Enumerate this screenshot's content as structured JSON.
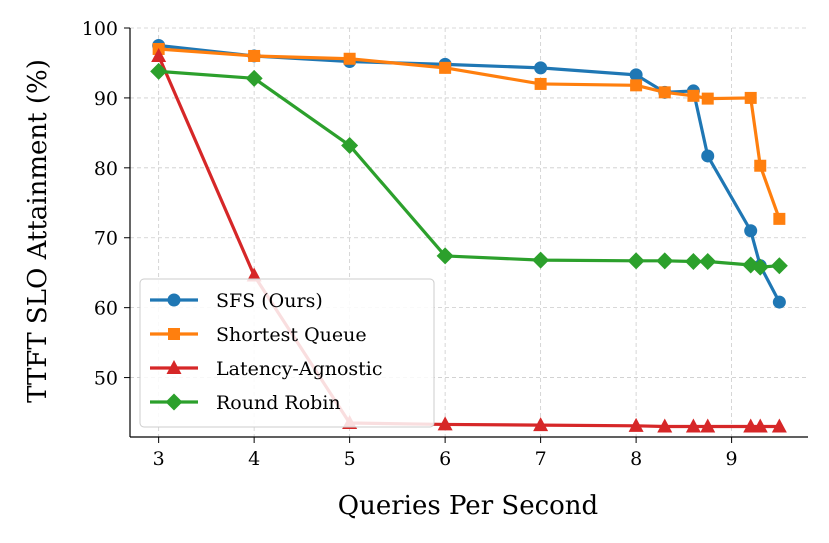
{
  "chart_data": {
    "type": "line",
    "title": "",
    "xlabel": "Queries Per Second",
    "ylabel": "TTFT SLO Attainment (%)",
    "xlim": [
      2.7,
      9.8
    ],
    "ylim": [
      41.5,
      100
    ],
    "xticks": [
      3,
      4,
      5,
      6,
      7,
      8,
      9
    ],
    "yticks": [
      50,
      60,
      70,
      80,
      90,
      100
    ],
    "grid": true,
    "legend_position": "lower-left",
    "series": [
      {
        "name": "SFS (Ours)",
        "color": "#1f77b4",
        "marker": "circle",
        "x": [
          3,
          4,
          5,
          6,
          7,
          8,
          8.3,
          8.6,
          8.75,
          9.2,
          9.3,
          9.5
        ],
        "y": [
          97.5,
          96.0,
          95.2,
          94.8,
          94.3,
          93.3,
          90.8,
          91.0,
          81.7,
          71.0,
          66.0,
          60.8
        ]
      },
      {
        "name": "Shortest Queue",
        "color": "#ff7f0e",
        "marker": "square",
        "x": [
          3,
          4,
          5,
          6,
          7,
          8,
          8.3,
          8.6,
          8.75,
          9.2,
          9.3,
          9.5
        ],
        "y": [
          97.0,
          96.0,
          95.6,
          94.3,
          92.0,
          91.8,
          90.8,
          90.3,
          89.9,
          90.0,
          80.3,
          72.7
        ]
      },
      {
        "name": "Latency-Agnostic",
        "color": "#d62728",
        "marker": "triangle",
        "x": [
          3,
          4,
          5,
          6,
          7,
          8,
          8.3,
          8.6,
          8.75,
          9.2,
          9.3,
          9.5
        ],
        "y": [
          96.0,
          64.6,
          43.5,
          43.3,
          43.2,
          43.1,
          43.0,
          43.0,
          43.0,
          43.0,
          43.0,
          43.0
        ]
      },
      {
        "name": "Round Robin",
        "color": "#2ca02c",
        "marker": "diamond",
        "x": [
          3,
          4,
          5,
          6,
          7,
          8,
          8.3,
          8.6,
          8.75,
          9.2,
          9.3,
          9.5
        ],
        "y": [
          93.8,
          92.8,
          83.2,
          67.4,
          66.8,
          66.7,
          66.7,
          66.6,
          66.6,
          66.1,
          65.8,
          66.0
        ]
      }
    ]
  }
}
